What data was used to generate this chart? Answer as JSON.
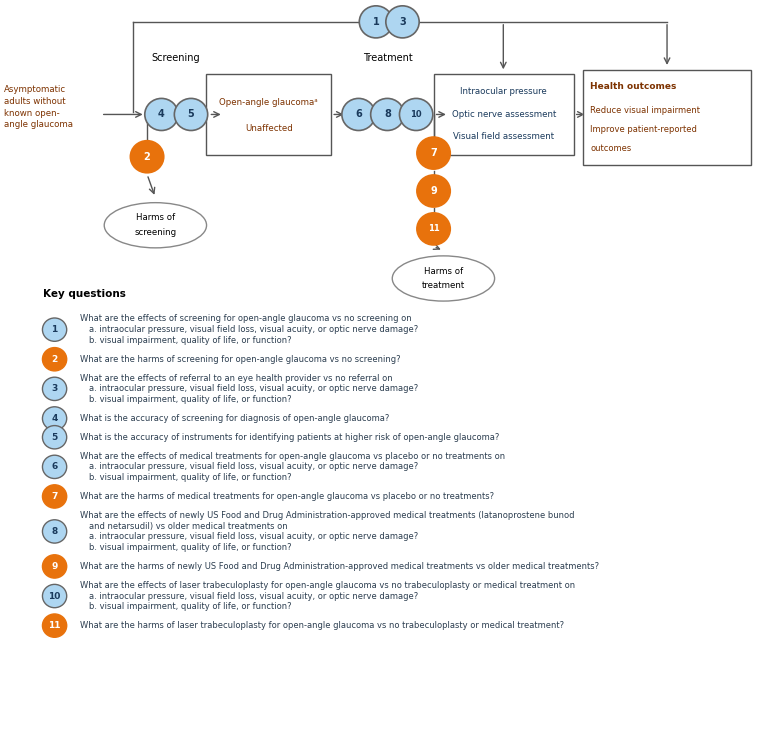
{
  "fig_width": 7.58,
  "fig_height": 7.29,
  "dpi": 100,
  "bg_color": "#ffffff",
  "blue_light": "#aed6f1",
  "orange_color": "#e8720c",
  "text_dark": "#2c3e50",
  "text_blue": "#1a3a5c",
  "text_orange": "#7d3200",
  "line_color": "#555555",
  "key_questions": [
    {
      "num": 1,
      "color": "blue",
      "lines": [
        "What are the effects of screening for open-angle glaucoma vs no screening on",
        "a. intraocular pressure, visual field loss, visual acuity, or optic nerve damage?",
        "b. visual impairment, quality of life, or function?"
      ]
    },
    {
      "num": 2,
      "color": "orange",
      "lines": [
        "What are the harms of screening for open-angle glaucoma vs no screening?"
      ]
    },
    {
      "num": 3,
      "color": "blue",
      "lines": [
        "What are the effects of referral to an eye health provider vs no referral on",
        "a. intraocular pressure, visual field loss, visual acuity, or optic nerve damage?",
        "b. visual impairment, quality of life, or function?"
      ]
    },
    {
      "num": 4,
      "color": "blue",
      "lines": [
        "What is the accuracy of screening for diagnosis of open-angle glaucoma?"
      ]
    },
    {
      "num": 5,
      "color": "blue",
      "lines": [
        "What is the accuracy of instruments for identifying patients at higher risk of open-angle glaucoma?"
      ]
    },
    {
      "num": 6,
      "color": "blue",
      "lines": [
        "What are the effects of medical treatments for open-angle glaucoma vs placebo or no treatments on",
        "a. intraocular pressure, visual field loss, visual acuity, or optic nerve damage?",
        "b. visual impairment, quality of life, or function?"
      ]
    },
    {
      "num": 7,
      "color": "orange",
      "lines": [
        "What are the harms of medical treatments for open-angle glaucoma vs placebo or no treatments?"
      ]
    },
    {
      "num": 8,
      "color": "blue",
      "lines": [
        "What are the effects of newly US Food and Drug Administration-approved medical treatments (latanoprostene bunod",
        "and netarsudil) vs older medical treatments on",
        "a. intraocular pressure, visual field loss, visual acuity, or optic nerve damage?",
        "b. visual impairment, quality of life, or function?"
      ]
    },
    {
      "num": 9,
      "color": "orange",
      "lines": [
        "What are the harms of newly US Food and Drug Administration-approved medical treatments vs older medical treatments?"
      ]
    },
    {
      "num": 10,
      "color": "blue",
      "lines": [
        "What are the effects of laser trabeculoplasty for open-angle glaucoma vs no trabeculoplasty or medical treatment on",
        "a. intraocular pressure, visual field loss, visual acuity, or optic nerve damage?",
        "b. visual impairment, quality of life, or function?"
      ]
    },
    {
      "num": 11,
      "color": "orange",
      "lines": [
        "What are the harms of laser trabeculoplasty for open-angle glaucoma vs no trabeculoplasty or medical treatment?"
      ]
    }
  ]
}
